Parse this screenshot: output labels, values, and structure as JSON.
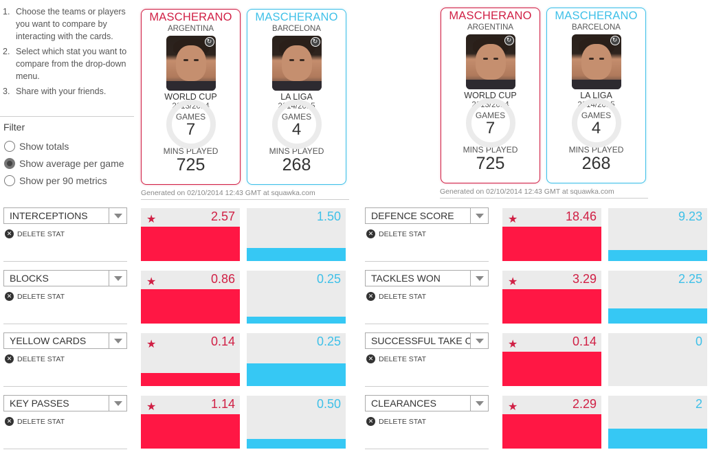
{
  "instructions": [
    {
      "num": "1.",
      "text": "Choose the teams or players you want to compare by interacting with the cards."
    },
    {
      "num": "2.",
      "text": "Select which stat you want to compare from the drop-down menu."
    },
    {
      "num": "3.",
      "text": "Share with your friends."
    }
  ],
  "filter": {
    "title": "Filter",
    "options": [
      {
        "label": "Show totals",
        "checked": false
      },
      {
        "label": "Show average per game",
        "checked": true
      },
      {
        "label": "Show per 90 metrics",
        "checked": false
      }
    ]
  },
  "colors": {
    "player1": "#d01f44",
    "player2": "#3ec0e8",
    "bar1": "#ff1744",
    "bar2": "#36c8f4"
  },
  "cards": [
    {
      "name": "MASCHERANO",
      "team": "ARGENTINA",
      "competition": "WORLD CUP",
      "season": "2013/2014",
      "games_label": "GAMES",
      "games": "7",
      "mins_label": "MINS PLAYED",
      "mins": "725",
      "badge_icon": "edit-icon"
    },
    {
      "name": "MASCHERANO",
      "team": "BARCELONA",
      "competition": "LA LIGA",
      "season": "2014/2015",
      "games_label": "GAMES",
      "games": "4",
      "mins_label": "MINS PLAYED",
      "mins": "268",
      "badge_icon": "edit-icon"
    }
  ],
  "generated_text": "Generated on 02/10/2014 12:43 GMT at squawka.com",
  "delete_label": "DELETE STAT",
  "panels": [
    {
      "stats": [
        {
          "name": "INTERCEPTIONS",
          "p1": "2.57",
          "p2": "1.50",
          "p1_frac": 1.0,
          "p2_frac": 0.38,
          "leader": 1
        },
        {
          "name": "BLOCKS",
          "p1": "0.86",
          "p2": "0.25",
          "p1_frac": 1.0,
          "p2_frac": 0.19,
          "leader": 1
        },
        {
          "name": "YELLOW CARDS",
          "p1": "0.14",
          "p2": "0.25",
          "p1_frac": 0.38,
          "p2_frac": 0.66,
          "leader": 1
        },
        {
          "name": "KEY PASSES",
          "p1": "1.14",
          "p2": "0.50",
          "p1_frac": 1.0,
          "p2_frac": 0.28,
          "leader": 1
        }
      ]
    },
    {
      "stats": [
        {
          "name": "DEFENCE SCORE",
          "p1": "18.46",
          "p2": "9.23",
          "p1_frac": 1.0,
          "p2_frac": 0.32,
          "leader": 1
        },
        {
          "name": "TACKLES WON",
          "p1": "3.29",
          "p2": "2.25",
          "p1_frac": 1.0,
          "p2_frac": 0.44,
          "leader": 1
        },
        {
          "name": "SUCCESSFUL TAKE O",
          "p1": "0.14",
          "p2": "0",
          "p1_frac": 1.0,
          "p2_frac": 0.0,
          "leader": 1
        },
        {
          "name": "CLEARANCES",
          "p1": "2.29",
          "p2": "2",
          "p1_frac": 1.0,
          "p2_frac": 0.58,
          "leader": 1
        }
      ]
    }
  ]
}
